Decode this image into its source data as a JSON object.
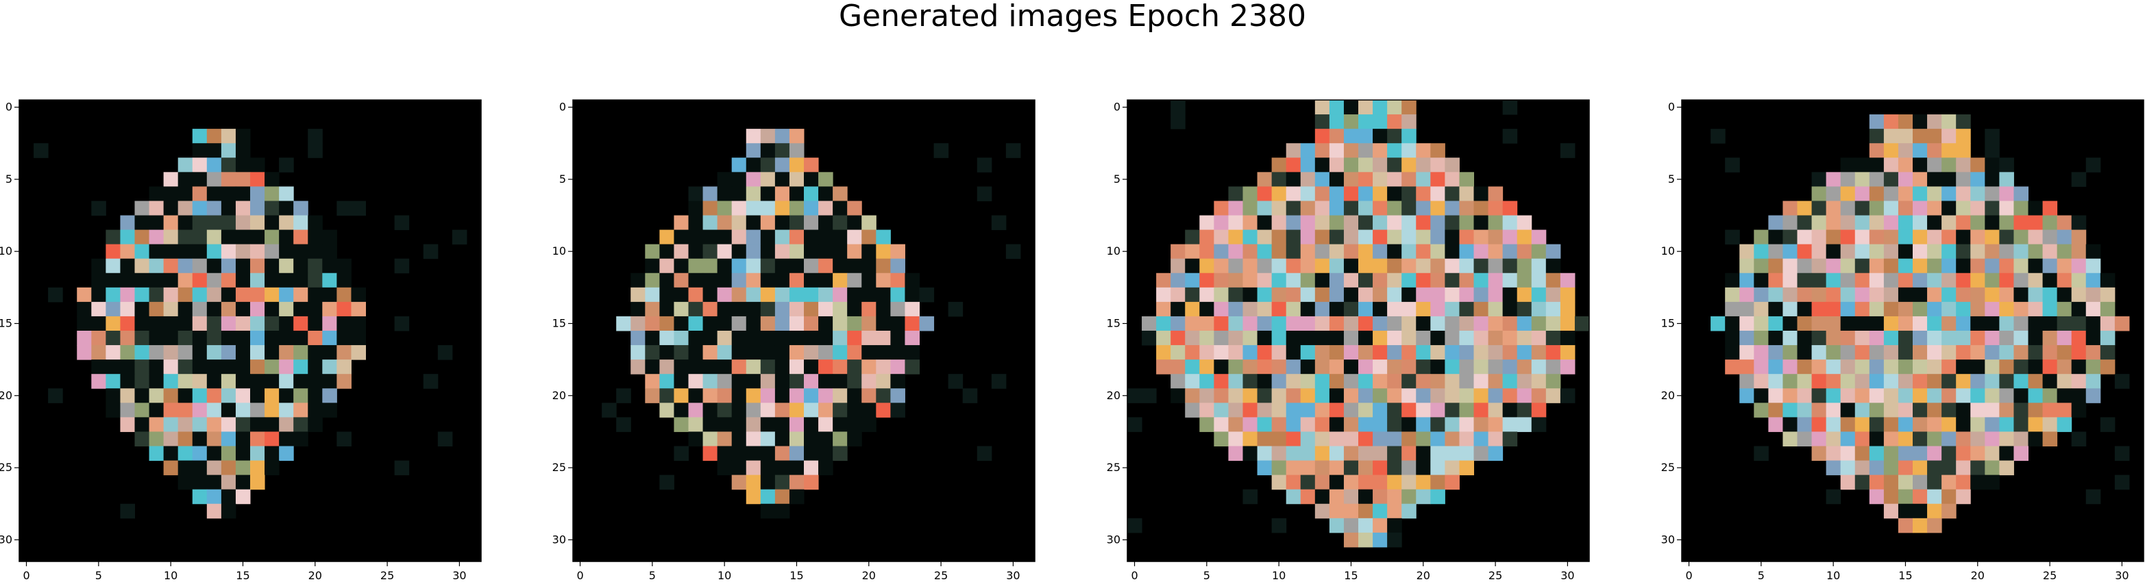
{
  "title": "Generated images Epoch 2380",
  "chart_data": {
    "type": "heatmap",
    "title": "Generated images Epoch 2380",
    "grid": false,
    "panels": [
      {
        "panel": 1,
        "xlim": [
          -0.5,
          31.5
        ],
        "ylim": [
          31.5,
          -0.5
        ],
        "xticks": [
          "0",
          "5",
          "10",
          "15",
          "20",
          "25",
          "30"
        ],
        "yticks": [
          "0",
          "5",
          "10",
          "15",
          "20",
          "25",
          "30"
        ]
      },
      {
        "panel": 2,
        "xlim": [
          -0.5,
          31.5
        ],
        "ylim": [
          31.5,
          -0.5
        ],
        "xticks": [
          "0",
          "5",
          "10",
          "15",
          "20",
          "25",
          "30"
        ],
        "yticks": [
          "0",
          "5",
          "10",
          "15",
          "20",
          "25",
          "30"
        ]
      },
      {
        "panel": 3,
        "xlim": [
          -0.5,
          31.5
        ],
        "ylim": [
          31.5,
          -0.5
        ],
        "xticks": [
          "0",
          "5",
          "10",
          "15",
          "20",
          "25",
          "30"
        ],
        "yticks": [
          "0",
          "5",
          "10",
          "15",
          "20",
          "25",
          "30"
        ]
      },
      {
        "panel": 4,
        "xlim": [
          -0.5,
          31.5
        ],
        "ylim": [
          31.5,
          -0.5
        ],
        "xticks": [
          "0",
          "5",
          "10",
          "15",
          "20",
          "25",
          "30"
        ],
        "yticks": [
          "0",
          "5",
          "10",
          "15",
          "20",
          "25",
          "30"
        ]
      }
    ]
  }
}
